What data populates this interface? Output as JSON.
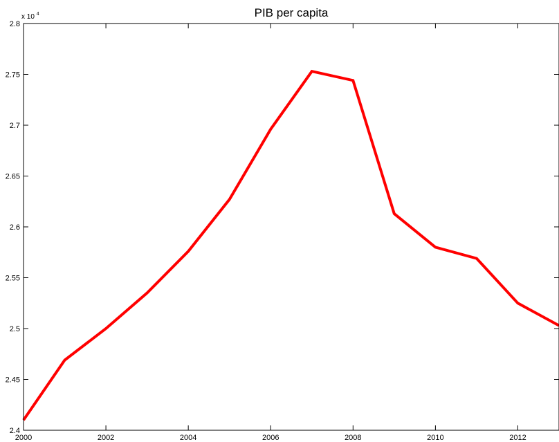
{
  "chart_data": {
    "type": "line",
    "title": "PIB per capita",
    "xlabel": "",
    "ylabel": "",
    "y_exponent_prefix": "x 10",
    "y_exponent_power": "4",
    "xlim": [
      2000,
      2013
    ],
    "ylim": [
      2.4,
      2.8
    ],
    "x_ticks": [
      2000,
      2002,
      2004,
      2006,
      2008,
      2010,
      2012
    ],
    "x_tick_labels": [
      "2000",
      "2002",
      "2004",
      "2006",
      "2008",
      "2010",
      "2012"
    ],
    "y_ticks": [
      2.4,
      2.45,
      2.5,
      2.55,
      2.6,
      2.65,
      2.7,
      2.75,
      2.8
    ],
    "y_tick_labels": [
      "2.4",
      "2.45",
      "2.5",
      "2.55",
      "2.6",
      "2.65",
      "2.7",
      "2.75",
      "2.8"
    ],
    "grid": false,
    "line_color": "#ff0000",
    "series": [
      {
        "x": [
          2000,
          2001,
          2002,
          2003,
          2004,
          2005,
          2006,
          2007,
          2008,
          2009,
          2010,
          2011,
          2012,
          2013
        ],
        "values": [
          2.41,
          2.469,
          2.5,
          2.535,
          2.576,
          2.627,
          2.696,
          2.753,
          2.744,
          2.613,
          2.58,
          2.569,
          2.525,
          2.503
        ]
      }
    ]
  }
}
